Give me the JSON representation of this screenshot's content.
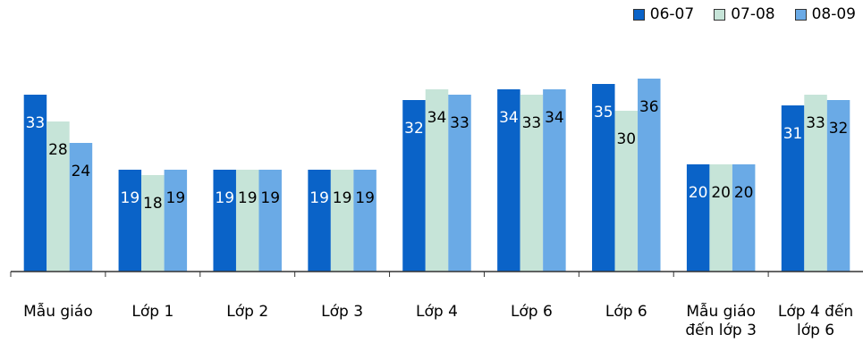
{
  "chart_data": {
    "type": "bar",
    "title": "",
    "xlabel": "",
    "ylabel": "",
    "ylim": [
      0,
      50
    ],
    "grid": false,
    "legend_position": "top-right",
    "categories": [
      "Mẫu giáo",
      "Lớp 1",
      "Lớp 2",
      "Lớp 3",
      "Lớp 4",
      "Lớp 6",
      "Lớp 6",
      "Mẫu giáo đến lớp 3",
      "Lớp 4 đến lớp 6"
    ],
    "category_lines": [
      [
        "Mẫu giáo"
      ],
      [
        "Lớp 1"
      ],
      [
        "Lớp 2"
      ],
      [
        "Lớp 3"
      ],
      [
        "Lớp 4"
      ],
      [
        "Lớp 6"
      ],
      [
        "Lớp 6"
      ],
      [
        "Mẫu giáo",
        "đến lớp 3"
      ],
      [
        "Lớp 4 đến",
        "lớp 6"
      ]
    ],
    "series": [
      {
        "name": "06-07",
        "color": "#0a63c8",
        "label_color": "#ffffff",
        "values": [
          33,
          19,
          19,
          19,
          32,
          34,
          35,
          20,
          31
        ]
      },
      {
        "name": "07-08",
        "color": "#c6e4d8",
        "label_color": "#000000",
        "values": [
          28,
          18,
          19,
          19,
          34,
          33,
          30,
          20,
          33
        ]
      },
      {
        "name": "08-09",
        "color": "#6aaae6",
        "label_color": "#000000",
        "values": [
          24,
          19,
          19,
          19,
          33,
          34,
          36,
          20,
          32
        ]
      }
    ]
  }
}
